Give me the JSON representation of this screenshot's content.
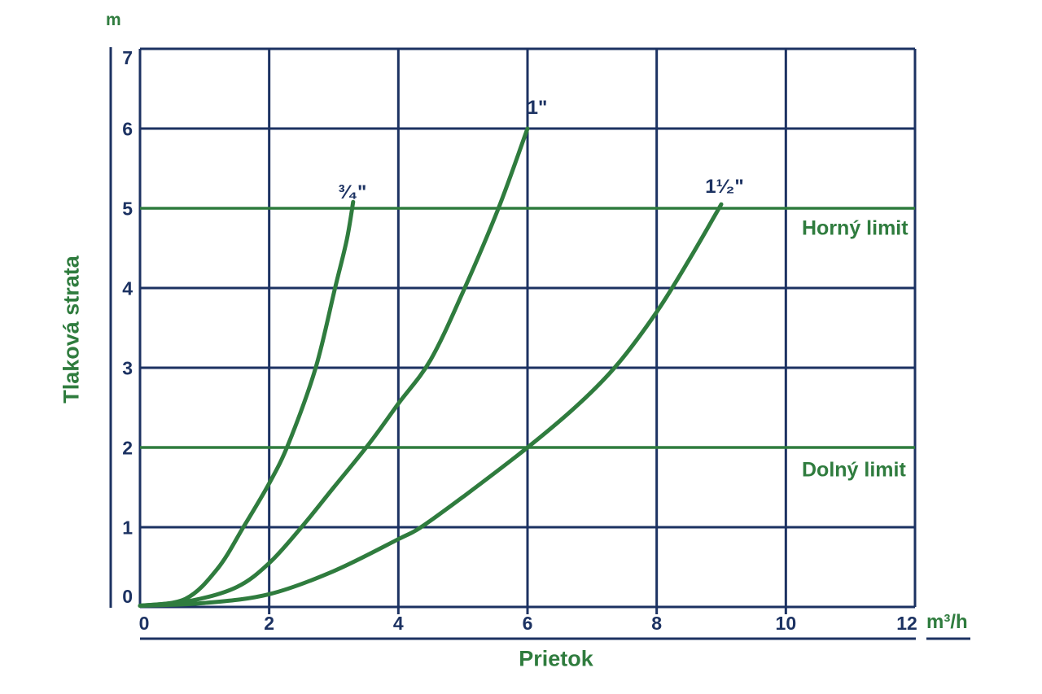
{
  "colors": {
    "navy": "#1c3262",
    "green": "#2f7c3e",
    "background": "#ffffff"
  },
  "chart_data": {
    "type": "line",
    "title": "",
    "xlabel": "Prietok",
    "ylabel": "Tlaková strata",
    "x_unit": "m³/h",
    "y_unit": "m",
    "xlim": [
      0,
      12
    ],
    "ylim": [
      0,
      7
    ],
    "xticks": [
      0,
      2,
      4,
      6,
      8,
      10,
      12
    ],
    "yticks": [
      0,
      1,
      2,
      3,
      4,
      5,
      6,
      7
    ],
    "grid": true,
    "legend_position": "none",
    "series": [
      {
        "name": "3/4\"",
        "label_display": "³⁄₄\"",
        "points": [
          [
            0,
            0
          ],
          [
            0.7,
            0.1
          ],
          [
            1.2,
            0.48
          ],
          [
            1.6,
            1
          ],
          [
            2,
            1.55
          ],
          [
            2.3,
            2.05
          ],
          [
            2.72,
            3
          ],
          [
            3.02,
            4
          ],
          [
            3.2,
            4.6
          ],
          [
            3.3,
            5.08
          ]
        ]
      },
      {
        "name": "1\"",
        "label_display": "1\"",
        "points": [
          [
            0,
            0
          ],
          [
            0.8,
            0.08
          ],
          [
            1.5,
            0.25
          ],
          [
            2,
            0.55
          ],
          [
            2.5,
            1
          ],
          [
            3,
            1.5
          ],
          [
            3.55,
            2.05
          ],
          [
            4,
            2.55
          ],
          [
            4.5,
            3.1
          ],
          [
            5,
            3.95
          ],
          [
            5.55,
            5
          ],
          [
            6,
            6
          ]
        ]
      },
      {
        "name": "1 1/2\"",
        "label_display": "1¹⁄₂\"",
        "points": [
          [
            0,
            0
          ],
          [
            1,
            0.05
          ],
          [
            2,
            0.16
          ],
          [
            3,
            0.45
          ],
          [
            4,
            0.85
          ],
          [
            4.35,
            1
          ],
          [
            5,
            1.38
          ],
          [
            6,
            2
          ],
          [
            6.8,
            2.55
          ],
          [
            7.4,
            3.05
          ],
          [
            8,
            3.7
          ],
          [
            8.5,
            4.35
          ],
          [
            9,
            5.05
          ]
        ]
      }
    ],
    "limit_lines": [
      {
        "label": "Horný limit",
        "y": 5
      },
      {
        "label": "Dolný limit",
        "y": 2
      }
    ]
  }
}
